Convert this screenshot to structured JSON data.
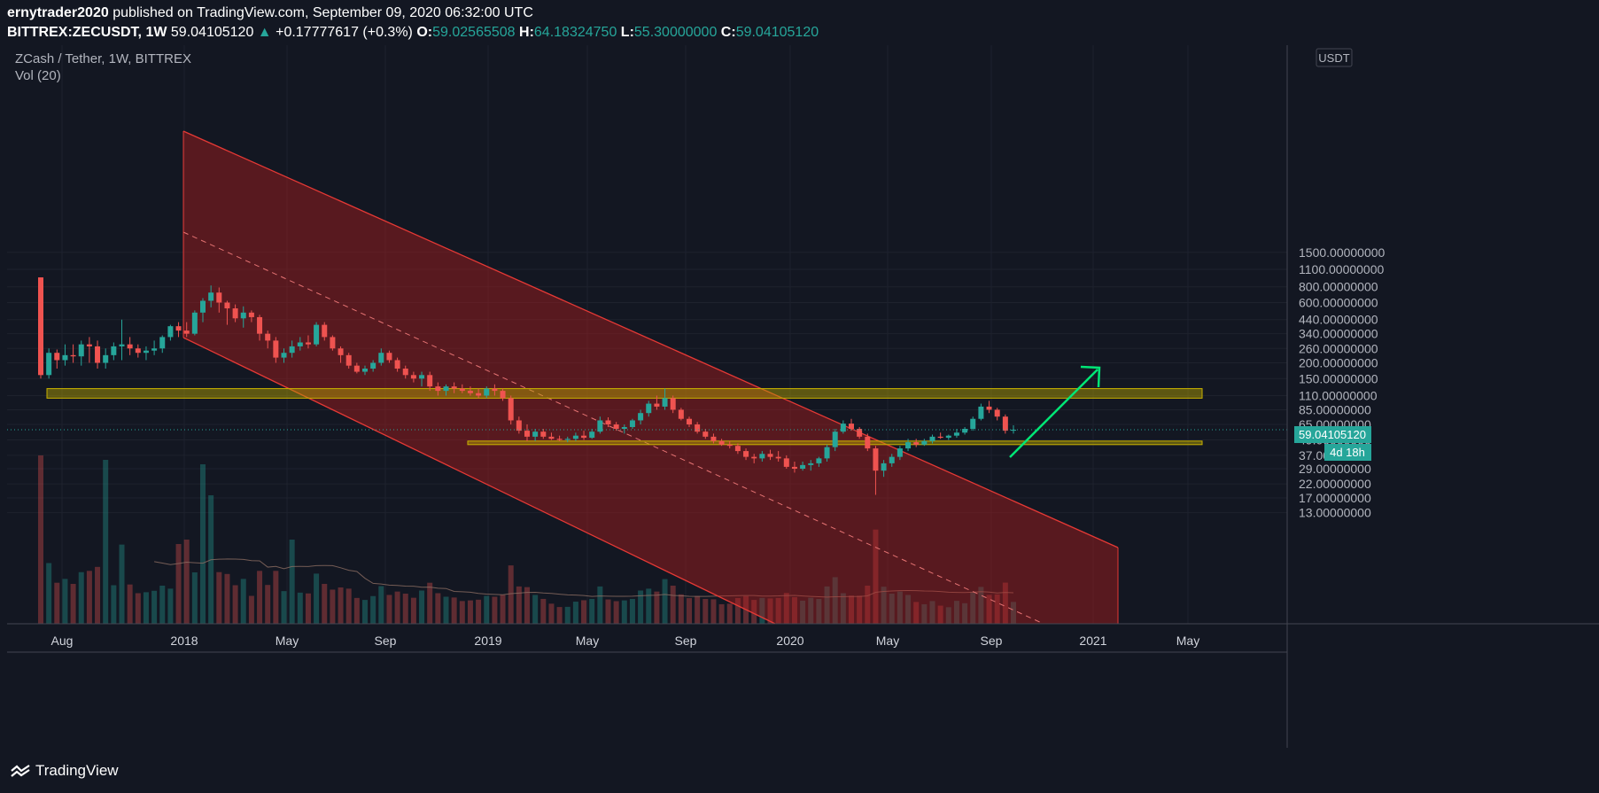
{
  "header": {
    "author": "ernytrader2020",
    "published": "published on TradingView.com, September 09, 2020 06:32:00 UTC",
    "symbol": "BITTREX:ZECUSDT, 1W",
    "last": "59.04105120",
    "change": "+0.17777617 (+0.3%)",
    "open_label": "O:",
    "open": "59.02565508",
    "high_label": "H:",
    "high": "64.18324750",
    "low_label": "L:",
    "low": "55.30000000",
    "close_label": "C:",
    "close": "59.04105120"
  },
  "legend": {
    "title": "ZCash / Tether, 1W, BITTREX",
    "volume": "Vol (20)"
  },
  "price_axis": {
    "currency": "USDT",
    "current_price": "59.04105120",
    "countdown": "4d 18h"
  },
  "footer": {
    "brand": "TradingView"
  },
  "colors": {
    "background": "#131722",
    "up": "#26a69a",
    "down": "#ef5350",
    "zone": "#b7a600",
    "channel": "#b71c1c",
    "arrow": "#00e676"
  },
  "chart_data": {
    "type": "candlestick",
    "title": "ZCash / Tether, 1W, BITTREX",
    "y_scale": "log",
    "y_ticks": [
      "1500.00000000",
      "1100.00000000",
      "800.00000000",
      "600.00000000",
      "440.00000000",
      "340.00000000",
      "260.00000000",
      "200.00000000",
      "150.00000000",
      "110.00000000",
      "85.00000000",
      "65.00000000",
      "49.00000000",
      "37.00000000",
      "29.00000000",
      "22.00000000",
      "17.00000000",
      "13.00000000"
    ],
    "x_ticks": [
      "Aug",
      "2018",
      "May",
      "Sep",
      "2019",
      "May",
      "Sep",
      "2020",
      "May",
      "Sep",
      "2021",
      "May"
    ],
    "resistance_zone": [
      105,
      125
    ],
    "support_zone": [
      45,
      48
    ],
    "series": [
      {
        "name": "price",
        "ohlc": [
          [
            950,
            950,
            150,
            160
          ],
          [
            160,
            260,
            150,
            240
          ],
          [
            240,
            255,
            180,
            210
          ],
          [
            210,
            280,
            190,
            230
          ],
          [
            230,
            280,
            200,
            225
          ],
          [
            225,
            300,
            190,
            280
          ],
          [
            280,
            320,
            200,
            270
          ],
          [
            270,
            300,
            180,
            200
          ],
          [
            200,
            260,
            180,
            230
          ],
          [
            230,
            290,
            210,
            270
          ],
          [
            270,
            440,
            210,
            280
          ],
          [
            280,
            320,
            230,
            260
          ],
          [
            260,
            280,
            220,
            240
          ],
          [
            240,
            270,
            210,
            250
          ],
          [
            250,
            300,
            230,
            260
          ],
          [
            260,
            330,
            240,
            320
          ],
          [
            320,
            400,
            300,
            390
          ],
          [
            390,
            420,
            320,
            360
          ],
          [
            360,
            420,
            320,
            340
          ],
          [
            340,
            520,
            330,
            500
          ],
          [
            500,
            650,
            420,
            620
          ],
          [
            620,
            820,
            550,
            720
          ],
          [
            720,
            790,
            500,
            600
          ],
          [
            600,
            620,
            400,
            540
          ],
          [
            540,
            580,
            420,
            450
          ],
          [
            450,
            560,
            380,
            500
          ],
          [
            500,
            520,
            420,
            460
          ],
          [
            460,
            480,
            300,
            340
          ],
          [
            340,
            360,
            260,
            300
          ],
          [
            300,
            320,
            200,
            220
          ],
          [
            220,
            260,
            200,
            240
          ],
          [
            240,
            300,
            220,
            270
          ],
          [
            270,
            320,
            250,
            290
          ],
          [
            290,
            330,
            260,
            280
          ],
          [
            280,
            420,
            270,
            400
          ],
          [
            400,
            420,
            300,
            320
          ],
          [
            320,
            330,
            250,
            260
          ],
          [
            260,
            270,
            200,
            230
          ],
          [
            230,
            240,
            180,
            190
          ],
          [
            190,
            200,
            165,
            170
          ],
          [
            170,
            190,
            160,
            180
          ],
          [
            180,
            210,
            170,
            200
          ],
          [
            200,
            260,
            190,
            240
          ],
          [
            240,
            250,
            200,
            210
          ],
          [
            210,
            220,
            170,
            180
          ],
          [
            180,
            190,
            150,
            160
          ],
          [
            160,
            170,
            140,
            150
          ],
          [
            150,
            170,
            130,
            160
          ],
          [
            160,
            170,
            120,
            130
          ],
          [
            130,
            140,
            110,
            120
          ],
          [
            120,
            135,
            110,
            130
          ],
          [
            130,
            140,
            115,
            125
          ],
          [
            125,
            135,
            115,
            120
          ],
          [
            120,
            130,
            110,
            115
          ],
          [
            115,
            125,
            105,
            110
          ],
          [
            110,
            130,
            105,
            125
          ],
          [
            125,
            135,
            110,
            120
          ],
          [
            120,
            125,
            100,
            105
          ],
          [
            105,
            110,
            65,
            70
          ],
          [
            70,
            75,
            55,
            58
          ],
          [
            58,
            65,
            48,
            52
          ],
          [
            52,
            60,
            48,
            57
          ],
          [
            57,
            60,
            50,
            52
          ],
          [
            52,
            56,
            49,
            50
          ],
          [
            50,
            53,
            48,
            49
          ],
          [
            49,
            52,
            47,
            50
          ],
          [
            50,
            56,
            48,
            53
          ],
          [
            53,
            58,
            49,
            51
          ],
          [
            51,
            60,
            50,
            57
          ],
          [
            57,
            75,
            55,
            70
          ],
          [
            70,
            74,
            62,
            65
          ],
          [
            65,
            68,
            58,
            60
          ],
          [
            60,
            65,
            55,
            62
          ],
          [
            62,
            72,
            60,
            70
          ],
          [
            70,
            85,
            65,
            80
          ],
          [
            80,
            100,
            75,
            95
          ],
          [
            95,
            110,
            85,
            90
          ],
          [
            90,
            125,
            85,
            105
          ],
          [
            105,
            110,
            80,
            85
          ],
          [
            85,
            88,
            70,
            72
          ],
          [
            72,
            75,
            62,
            65
          ],
          [
            65,
            68,
            55,
            57
          ],
          [
            57,
            60,
            50,
            52
          ],
          [
            52,
            55,
            46,
            48
          ],
          [
            48,
            50,
            44,
            45
          ],
          [
            45,
            48,
            42,
            44
          ],
          [
            44,
            46,
            38,
            40
          ],
          [
            40,
            42,
            34,
            36
          ],
          [
            36,
            38,
            32,
            35
          ],
          [
            35,
            40,
            33,
            38
          ],
          [
            38,
            41,
            34,
            36
          ],
          [
            36,
            40,
            33,
            35
          ],
          [
            35,
            37,
            29,
            30
          ],
          [
            30,
            33,
            27,
            29
          ],
          [
            29,
            33,
            28,
            31
          ],
          [
            31,
            34,
            28,
            32
          ],
          [
            32,
            36,
            30,
            35
          ],
          [
            35,
            45,
            33,
            43
          ],
          [
            43,
            60,
            40,
            57
          ],
          [
            57,
            70,
            55,
            66
          ],
          [
            66,
            72,
            58,
            60
          ],
          [
            60,
            62,
            50,
            52
          ],
          [
            52,
            55,
            40,
            42
          ],
          [
            42,
            44,
            18,
            28
          ],
          [
            28,
            34,
            25,
            32
          ],
          [
            32,
            38,
            30,
            36
          ],
          [
            36,
            44,
            34,
            42
          ],
          [
            42,
            50,
            40,
            47
          ],
          [
            47,
            50,
            43,
            45
          ],
          [
            45,
            50,
            44,
            48
          ],
          [
            48,
            54,
            46,
            52
          ],
          [
            52,
            56,
            50,
            51
          ],
          [
            51,
            54,
            49,
            53
          ],
          [
            53,
            60,
            51,
            56
          ],
          [
            56,
            62,
            54,
            60
          ],
          [
            60,
            75,
            58,
            72
          ],
          [
            72,
            95,
            70,
            90
          ],
          [
            90,
            100,
            80,
            85
          ],
          [
            85,
            88,
            70,
            75
          ],
          [
            75,
            78,
            55,
            58
          ],
          [
            58,
            64,
            55,
            59
          ]
        ]
      }
    ],
    "volume_ma_period": 20
  }
}
